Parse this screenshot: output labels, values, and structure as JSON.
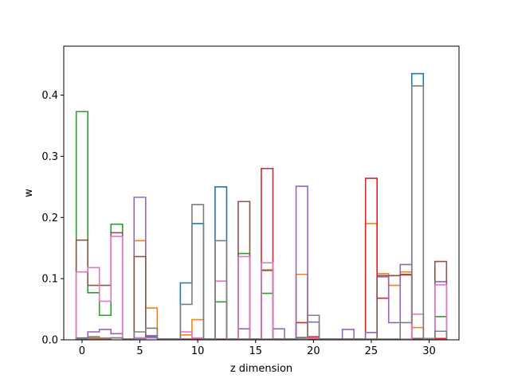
{
  "chart_data": {
    "type": "line",
    "step": "histogram-steps",
    "title": "",
    "xlabel": "z dimension",
    "ylabel": "w",
    "xlim": [
      -1.58,
      32.58
    ],
    "ylim": [
      0,
      0.48
    ],
    "xticks": [
      0,
      5,
      10,
      15,
      20,
      25,
      30
    ],
    "yticks": [
      0.0,
      0.1,
      0.2,
      0.3,
      0.4
    ],
    "ytick_labels": [
      "0.0",
      "0.1",
      "0.2",
      "0.3",
      "0.4"
    ],
    "grid": false,
    "legend": "none",
    "bins": [
      0,
      1,
      2,
      3,
      4,
      5,
      6,
      7,
      8,
      9,
      10,
      11,
      12,
      13,
      14,
      15,
      16,
      17,
      18,
      19,
      20,
      21,
      22,
      23,
      24,
      25,
      26,
      27,
      28,
      29,
      30,
      31
    ],
    "series": [
      {
        "color": "#1f77b4",
        "values": [
          0.003,
          0.005,
          0.002,
          0.003,
          0.001,
          0.002,
          0.005,
          0.001,
          0.001,
          0.093,
          0.19,
          0.001,
          0.25,
          0.001,
          0.001,
          0.001,
          0.001,
          0.001,
          0.001,
          0.001,
          0.001,
          0.001,
          0.001,
          0.001,
          0.001,
          0.001,
          0.001,
          0.001,
          0.001,
          0.435,
          0.002,
          0.002
        ]
      },
      {
        "color": "#ff7f0e",
        "values": [
          0.002,
          0.004,
          0.003,
          0.003,
          0.001,
          0.162,
          0.052,
          0.001,
          0.001,
          0.008,
          0.033,
          0.001,
          0.001,
          0.001,
          0.001,
          0.001,
          0.113,
          0.001,
          0.001,
          0.107,
          0.001,
          0.001,
          0.001,
          0.001,
          0.001,
          0.19,
          0.108,
          0.089,
          0.111,
          0.02,
          0.002,
          0.002
        ]
      },
      {
        "color": "#2ca02c",
        "values": [
          0.373,
          0.077,
          0.04,
          0.189,
          0.001,
          0.003,
          0.003,
          0.001,
          0.001,
          0.001,
          0.001,
          0.001,
          0.062,
          0.001,
          0.141,
          0.001,
          0.076,
          0.001,
          0.001,
          0.002,
          0.003,
          0.001,
          0.001,
          0.001,
          0.001,
          0.001,
          0.001,
          0.001,
          0.001,
          0.001,
          0.002,
          0.038
        ]
      },
      {
        "color": "#d62728",
        "values": [
          0.002,
          0.002,
          0.002,
          0.003,
          0.001,
          0.003,
          0.003,
          0.001,
          0.001,
          0.001,
          0.001,
          0.001,
          0.001,
          0.001,
          0.001,
          0.001,
          0.28,
          0.001,
          0.001,
          0.028,
          0.005,
          0.001,
          0.001,
          0.001,
          0.001,
          0.264,
          0.068,
          0.105,
          0.106,
          0.002,
          0.002,
          0.002
        ]
      },
      {
        "color": "#9467bd",
        "values": [
          0.001,
          0.013,
          0.017,
          0.01,
          0.001,
          0.233,
          0.007,
          0.001,
          0.001,
          0.001,
          0.001,
          0.001,
          0.001,
          0.001,
          0.018,
          0.001,
          0.001,
          0.018,
          0.001,
          0.251,
          0.029,
          0.001,
          0.001,
          0.017,
          0.001,
          0.012,
          0.103,
          0.028,
          0.123,
          0.002,
          0.002,
          0.095
        ]
      },
      {
        "color": "#8c564b",
        "values": [
          0.163,
          0.089,
          0.089,
          0.175,
          0.001,
          0.136,
          0.003,
          0.001,
          0.001,
          0.001,
          0.001,
          0.001,
          0.001,
          0.001,
          0.226,
          0.001,
          0.114,
          0.001,
          0.001,
          0.001,
          0.001,
          0.001,
          0.001,
          0.001,
          0.001,
          0.001,
          0.105,
          0.105,
          0.107,
          0.002,
          0.002,
          0.128
        ]
      },
      {
        "color": "#e377c2",
        "values": [
          0.111,
          0.118,
          0.063,
          0.169,
          0.001,
          0.003,
          0.003,
          0.001,
          0.001,
          0.013,
          0.003,
          0.001,
          0.096,
          0.001,
          0.136,
          0.001,
          0.126,
          0.001,
          0.001,
          0.001,
          0.003,
          0.001,
          0.001,
          0.001,
          0.001,
          0.001,
          0.001,
          0.001,
          0.001,
          0.042,
          0.002,
          0.09
        ]
      },
      {
        "color": "#7f7f7f",
        "values": [
          0.002,
          0.002,
          0.002,
          0.003,
          0.001,
          0.013,
          0.019,
          0.001,
          0.001,
          0.058,
          0.221,
          0.001,
          0.162,
          0.001,
          0.001,
          0.001,
          0.001,
          0.001,
          0.001,
          0.004,
          0.04,
          0.001,
          0.001,
          0.001,
          0.001,
          0.001,
          0.001,
          0.001,
          0.028,
          0.415,
          0.002,
          0.014
        ]
      }
    ]
  }
}
